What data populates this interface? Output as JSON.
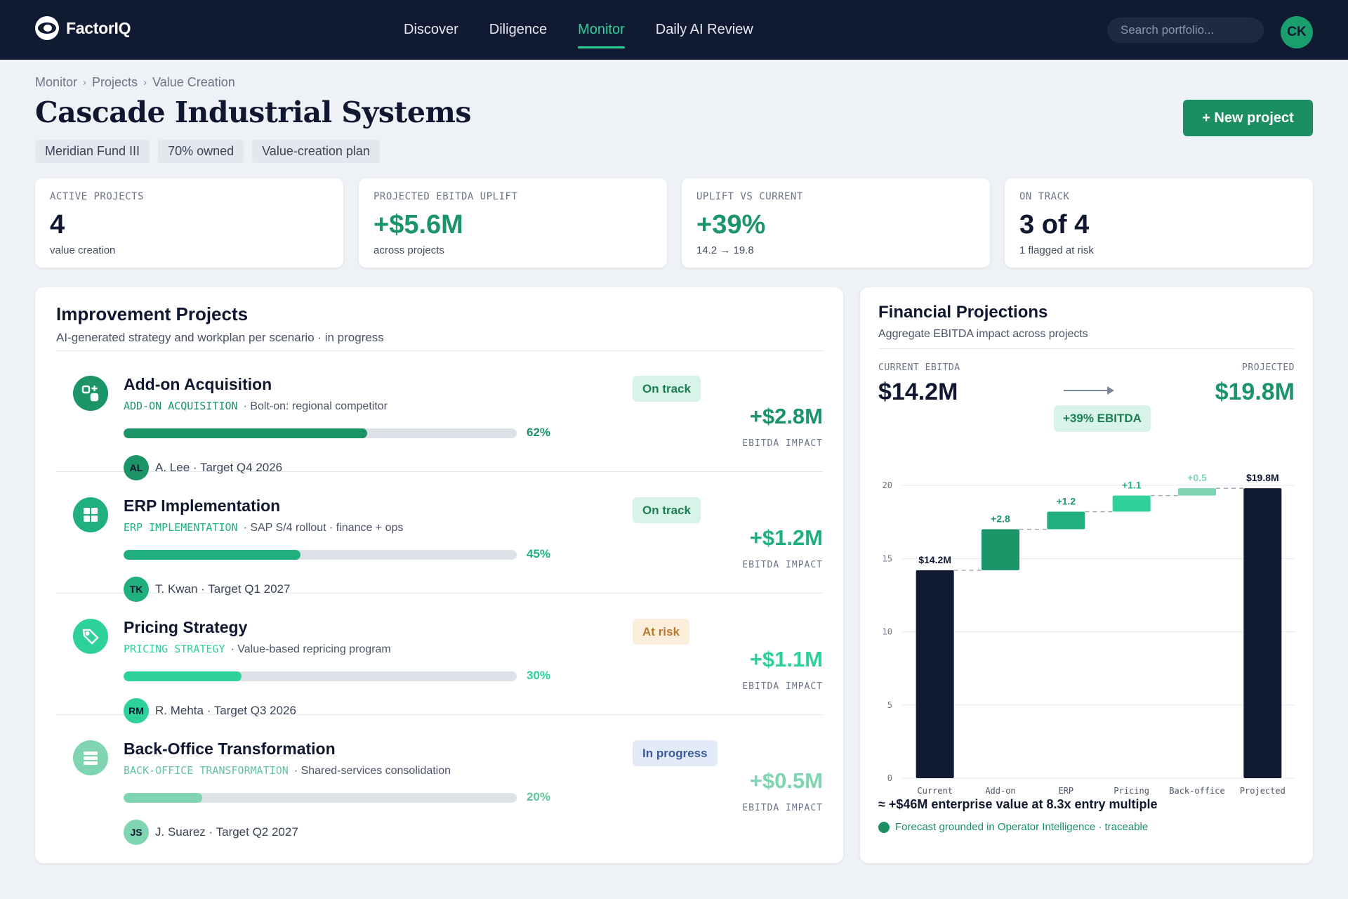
{
  "nav": {
    "brand": "FactorIQ",
    "links": [
      "Discover",
      "Diligence",
      "Monitor",
      "Daily AI Review"
    ],
    "active_index": 2,
    "search_placeholder": "Search portfolio...",
    "user_initials": "CK"
  },
  "breadcrumb": [
    "Monitor",
    "Projects",
    "Value Creation"
  ],
  "breadcrumb_separator": "›",
  "header": {
    "title": "Cascade Industrial Systems",
    "tags": [
      "Meridian Fund III",
      "70% owned",
      "Value-creation plan"
    ],
    "new_project_label": "+ New project"
  },
  "kpis": [
    {
      "label": "ACTIVE PROJECTS",
      "value": "4",
      "sub": "value creation",
      "green": false
    },
    {
      "label": "PROJECTED EBITDA UPLIFT",
      "value": "+$5.6M",
      "sub": "across projects",
      "green": true
    },
    {
      "label": "UPLIFT VS CURRENT",
      "value": "+39%",
      "sub": "14.2 → 19.8",
      "green": true
    },
    {
      "label": "ON TRACK",
      "value": "3 of 4",
      "sub": "1 flagged at risk",
      "green": false
    }
  ],
  "projects_panel": {
    "title": "Improvement Projects",
    "subtitle": "AI-generated strategy and workplan per scenario · in progress",
    "impact_label": "EBITDA IMPACT"
  },
  "projects": [
    {
      "name": "Add-on Acquisition",
      "code": "ADD-ON ACQUISITION",
      "description": "· Bolt-on: regional competitor",
      "progress": 62,
      "progress_label": "62%",
      "owner_initials": "AL",
      "owner_text": "A. Lee · Target Q4 2026",
      "status": "On track",
      "impact": "+$2.8M",
      "icon": "puzzle-plus-icon",
      "color": "#1b9468",
      "status_bg": "#d8f3e8",
      "status_color": "#1b7e57"
    },
    {
      "name": "ERP Implementation",
      "code": "ERP IMPLEMENTATION",
      "description": "· SAP S/4 rollout · finance + ops",
      "progress": 45,
      "progress_label": "45%",
      "owner_initials": "TK",
      "owner_text": "T. Kwan · Target Q1 2027",
      "status": "On track",
      "impact": "+$1.2M",
      "icon": "grid-icon",
      "color": "#20b07d",
      "status_bg": "#d8f3e8",
      "status_color": "#1b7e57"
    },
    {
      "name": "Pricing Strategy",
      "code": "PRICING STRATEGY",
      "description": "· Value-based repricing program",
      "progress": 30,
      "progress_label": "30%",
      "owner_initials": "RM",
      "owner_text": "R. Mehta · Target Q3 2026",
      "status": "At risk",
      "impact": "+$1.1M",
      "icon": "price-tag-icon",
      "color": "#2fd19a",
      "status_bg": "#fbefdc",
      "status_color": "#b8782a"
    },
    {
      "name": "Back-Office Transformation",
      "code": "BACK-OFFICE TRANSFORMATION",
      "description": "· Shared-services consolidation",
      "progress": 20,
      "progress_label": "20%",
      "owner_initials": "JS",
      "owner_text": "J. Suarez · Target Q2 2027",
      "status": "In progress",
      "impact": "+$0.5M",
      "icon": "stack-icon",
      "color": "#7fd4b2",
      "status_bg": "#e2eaf8",
      "status_color": "#3a5a9a"
    }
  ],
  "financial": {
    "title": "Financial Projections",
    "subtitle": "Aggregate EBITDA impact across projects",
    "current_label": "CURRENT EBITDA",
    "current_value": "$14.2M",
    "projected_label": "PROJECTED",
    "projected_value": "$19.8M",
    "uplift_pill": "+39% EBITDA",
    "ev_text": "≈ +$46M enterprise value at 8.3x entry multiple",
    "trace_text": "Forecast grounded in Operator Intelligence · traceable"
  },
  "chart_data": {
    "type": "bar",
    "subtype": "waterfall",
    "categories": [
      "Current",
      "Add-on",
      "ERP",
      "Pricing",
      "Back-office",
      "Projected"
    ],
    "values": [
      14.2,
      2.8,
      1.2,
      1.1,
      0.5,
      19.8
    ],
    "measure": [
      "total",
      "relative",
      "relative",
      "relative",
      "relative",
      "total"
    ],
    "data_labels": [
      "$14.2M",
      "+2.8",
      "+1.2",
      "+1.1",
      "+0.5",
      "$19.8M"
    ],
    "colors": [
      "#111a33",
      "#1b9468",
      "#20b07d",
      "#2fd19a",
      "#7fd4b2",
      "#111a33"
    ],
    "label_colors": [
      "#0f1830",
      "#1b9468",
      "#1b9468",
      "#20b07d",
      "#7fd4b2",
      "#0f1830"
    ],
    "yticks": [
      0,
      5,
      10,
      15,
      20
    ],
    "ylim": [
      0,
      20
    ],
    "grid": true
  }
}
